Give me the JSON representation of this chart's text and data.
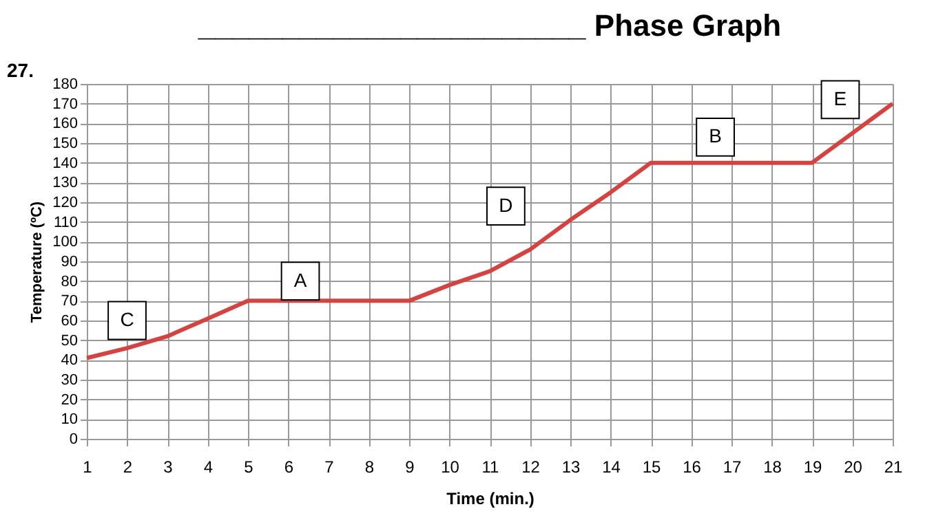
{
  "chart_data": {
    "type": "line",
    "title": "_______________________ Phase Graph",
    "xlabel": "Time (min.)",
    "ylabel": "Temperature (ºC)",
    "x": [
      1,
      2,
      3,
      4,
      5,
      9,
      10,
      11,
      12,
      13,
      14,
      15,
      19,
      20,
      21
    ],
    "series": [
      {
        "color": "#d9413f",
        "values": [
          41,
          46,
          52,
          61,
          70,
          70,
          78,
          85,
          96,
          111,
          125,
          140,
          140,
          155,
          170
        ]
      }
    ],
    "xlim": [
      1,
      21
    ],
    "xticks": [
      1,
      2,
      3,
      4,
      5,
      6,
      7,
      8,
      9,
      10,
      11,
      12,
      13,
      14,
      15,
      16,
      17,
      18,
      19,
      20,
      21
    ],
    "ylim": [
      0,
      180
    ],
    "yticks": [
      0,
      10,
      20,
      30,
      40,
      50,
      60,
      70,
      80,
      90,
      100,
      110,
      120,
      130,
      140,
      150,
      160,
      170,
      180
    ],
    "grid": true,
    "marker": "none",
    "line_style": "solid",
    "annotations": [
      "27.",
      {
        "text": "C",
        "x": 2,
        "y": 60
      },
      {
        "text": "A",
        "x": 6.3,
        "y": 80
      },
      {
        "text": "D",
        "x": 11.4,
        "y": 118
      },
      {
        "text": "B",
        "x": 16.6,
        "y": 153
      },
      {
        "text": "E",
        "x": 19.7,
        "y": 172
      }
    ]
  }
}
